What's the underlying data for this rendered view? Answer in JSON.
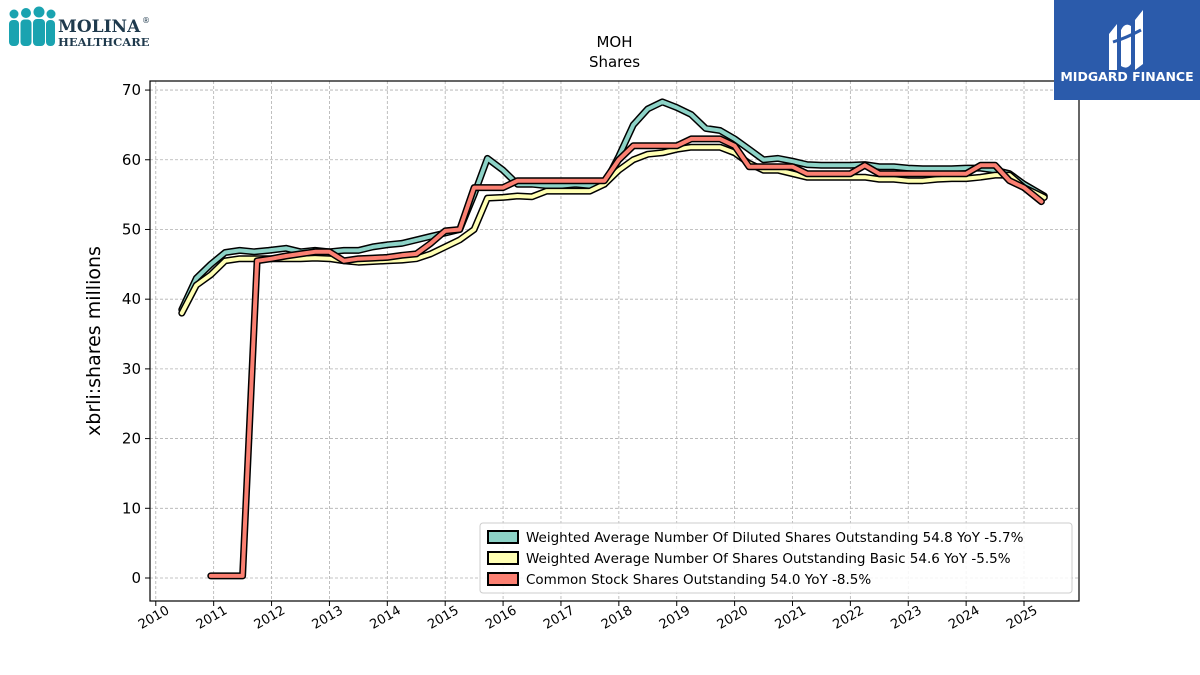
{
  "brand": {
    "molina_name": "MOLINA",
    "molina_sub": "HEALTHCARE",
    "molina_reg": "®",
    "midgard_name": "MIDGARD FINANCE",
    "molina_color": "#1aa3b0",
    "midgard_bg": "#2b5bab"
  },
  "chart_data": {
    "type": "line",
    "title": "MOH",
    "subtitle": "Shares",
    "ylabel": "xbrli:shares millions",
    "xlabel": "",
    "xlim": [
      2009.9,
      2025.95
    ],
    "ylim": [
      -3.3,
      71.3
    ],
    "yticks": [
      0,
      10,
      20,
      30,
      40,
      50,
      60,
      70
    ],
    "xticks": [
      "2010",
      "2011",
      "2012",
      "2013",
      "2014",
      "2015",
      "2016",
      "2017",
      "2018",
      "2019",
      "2020",
      "2021",
      "2022",
      "2023",
      "2024",
      "2025"
    ],
    "grid": true,
    "legend_position": "lower-right",
    "series": [
      {
        "name": "Weighted Average Number Of Diluted Shares Outstanding",
        "legend_label": "Weighted Average Number Of Diluted Shares Outstanding  54.8 YoY -5.7%",
        "color": "#8dd3c7",
        "x": [
          2010.45,
          2010.7,
          2010.95,
          2011.2,
          2011.45,
          2011.7,
          2011.95,
          2012.25,
          2012.5,
          2012.75,
          2013.0,
          2013.25,
          2013.5,
          2013.75,
          2014.0,
          2014.25,
          2014.5,
          2014.75,
          2015.0,
          2015.25,
          2015.5,
          2015.73,
          2016.0,
          2016.25,
          2016.5,
          2016.75,
          2017.0,
          2017.25,
          2017.5,
          2017.75,
          2018.0,
          2018.25,
          2018.5,
          2018.75,
          2019.0,
          2019.25,
          2019.5,
          2019.75,
          2020.0,
          2020.25,
          2020.5,
          2020.75,
          2021.0,
          2021.25,
          2021.5,
          2021.75,
          2022.0,
          2022.25,
          2022.5,
          2022.75,
          2023.0,
          2023.25,
          2023.5,
          2023.75,
          2024.0,
          2024.25,
          2024.5,
          2024.75,
          2025.0,
          2025.35
        ],
        "values": [
          38.5,
          43.0,
          45.0,
          46.7,
          47.0,
          46.8,
          47.0,
          47.3,
          46.8,
          47.0,
          46.8,
          47.0,
          47.0,
          47.5,
          47.8,
          48.0,
          48.5,
          49.0,
          49.5,
          50.0,
          55.0,
          60.2,
          58.5,
          56.5,
          56.5,
          56.3,
          56.3,
          56.5,
          56.3,
          56.5,
          60.5,
          65.0,
          67.3,
          68.3,
          67.5,
          66.5,
          64.5,
          64.2,
          63.0,
          61.5,
          60.0,
          60.2,
          59.8,
          59.3,
          59.2,
          59.2,
          59.2,
          59.3,
          59.0,
          59.0,
          58.8,
          58.7,
          58.7,
          58.7,
          58.8,
          58.8,
          58.5,
          58.0,
          56.5,
          54.8
        ]
      },
      {
        "name": "Weighted Average Number Of Shares Outstanding Basic",
        "legend_label": "Weighted Average Number Of Shares Outstanding Basic  54.6 YoY -5.5%",
        "color": "#ffffb3",
        "x": [
          2010.45,
          2010.7,
          2010.95,
          2011.2,
          2011.45,
          2011.7,
          2011.95,
          2012.25,
          2012.5,
          2012.75,
          2013.0,
          2013.25,
          2013.5,
          2013.75,
          2014.0,
          2014.25,
          2014.5,
          2014.75,
          2015.0,
          2015.25,
          2015.5,
          2015.73,
          2016.0,
          2016.25,
          2016.5,
          2016.75,
          2017.0,
          2017.25,
          2017.5,
          2017.75,
          2018.0,
          2018.25,
          2018.5,
          2018.75,
          2019.0,
          2019.25,
          2019.5,
          2019.75,
          2020.0,
          2020.25,
          2020.5,
          2020.75,
          2021.0,
          2021.25,
          2021.5,
          2021.75,
          2022.0,
          2022.25,
          2022.5,
          2022.75,
          2023.0,
          2023.25,
          2023.5,
          2023.75,
          2024.0,
          2024.25,
          2024.5,
          2024.75,
          2025.0,
          2025.35
        ],
        "values": [
          38.0,
          42.0,
          43.5,
          45.5,
          45.8,
          45.8,
          45.8,
          45.8,
          45.8,
          45.9,
          45.8,
          45.5,
          45.3,
          45.4,
          45.5,
          45.6,
          45.8,
          46.5,
          47.5,
          48.5,
          50.0,
          54.5,
          54.6,
          54.8,
          54.7,
          55.5,
          55.5,
          55.5,
          55.5,
          56.5,
          58.5,
          60.0,
          60.8,
          61.0,
          61.5,
          61.8,
          61.8,
          61.8,
          61.0,
          59.5,
          58.5,
          58.5,
          58.0,
          57.5,
          57.5,
          57.5,
          57.5,
          57.5,
          57.2,
          57.2,
          57.0,
          57.0,
          57.2,
          57.3,
          57.3,
          57.5,
          57.8,
          57.8,
          56.0,
          54.6
        ]
      },
      {
        "name": "Common Stock Shares Outstanding",
        "legend_label": "Common Stock Shares Outstanding  54.0 YoY -8.5%",
        "color": "#fb8072",
        "x": [
          2010.95,
          2011.5,
          2011.75,
          2012.0,
          2012.25,
          2012.5,
          2012.75,
          2013.0,
          2013.25,
          2013.5,
          2013.75,
          2014.0,
          2014.25,
          2014.5,
          2014.75,
          2015.0,
          2015.25,
          2015.5,
          2015.75,
          2016.0,
          2016.25,
          2016.5,
          2016.75,
          2017.0,
          2017.25,
          2017.5,
          2017.75,
          2018.0,
          2018.25,
          2018.5,
          2018.75,
          2019.0,
          2019.25,
          2019.5,
          2019.75,
          2020.0,
          2020.25,
          2020.5,
          2020.75,
          2021.0,
          2021.25,
          2021.5,
          2021.75,
          2022.0,
          2022.25,
          2022.5,
          2022.75,
          2023.0,
          2023.25,
          2023.5,
          2023.75,
          2024.0,
          2024.25,
          2024.5,
          2024.75,
          2025.0,
          2025.3
        ],
        "values": [
          0.3,
          0.3,
          45.5,
          45.8,
          46.2,
          46.5,
          46.8,
          46.8,
          45.5,
          45.8,
          45.9,
          46.0,
          46.3,
          46.5,
          48.0,
          49.8,
          50.0,
          56.0,
          56.0,
          56.0,
          57.0,
          57.0,
          57.0,
          57.0,
          57.0,
          57.0,
          57.0,
          60.0,
          62.0,
          62.0,
          62.0,
          62.0,
          63.0,
          63.0,
          63.0,
          62.0,
          59.0,
          59.0,
          59.0,
          59.0,
          58.0,
          58.0,
          58.0,
          58.0,
          59.2,
          58.0,
          58.0,
          58.0,
          58.0,
          58.0,
          58.0,
          58.0,
          59.2,
          59.2,
          57.0,
          56.0,
          54.0
        ]
      }
    ]
  }
}
